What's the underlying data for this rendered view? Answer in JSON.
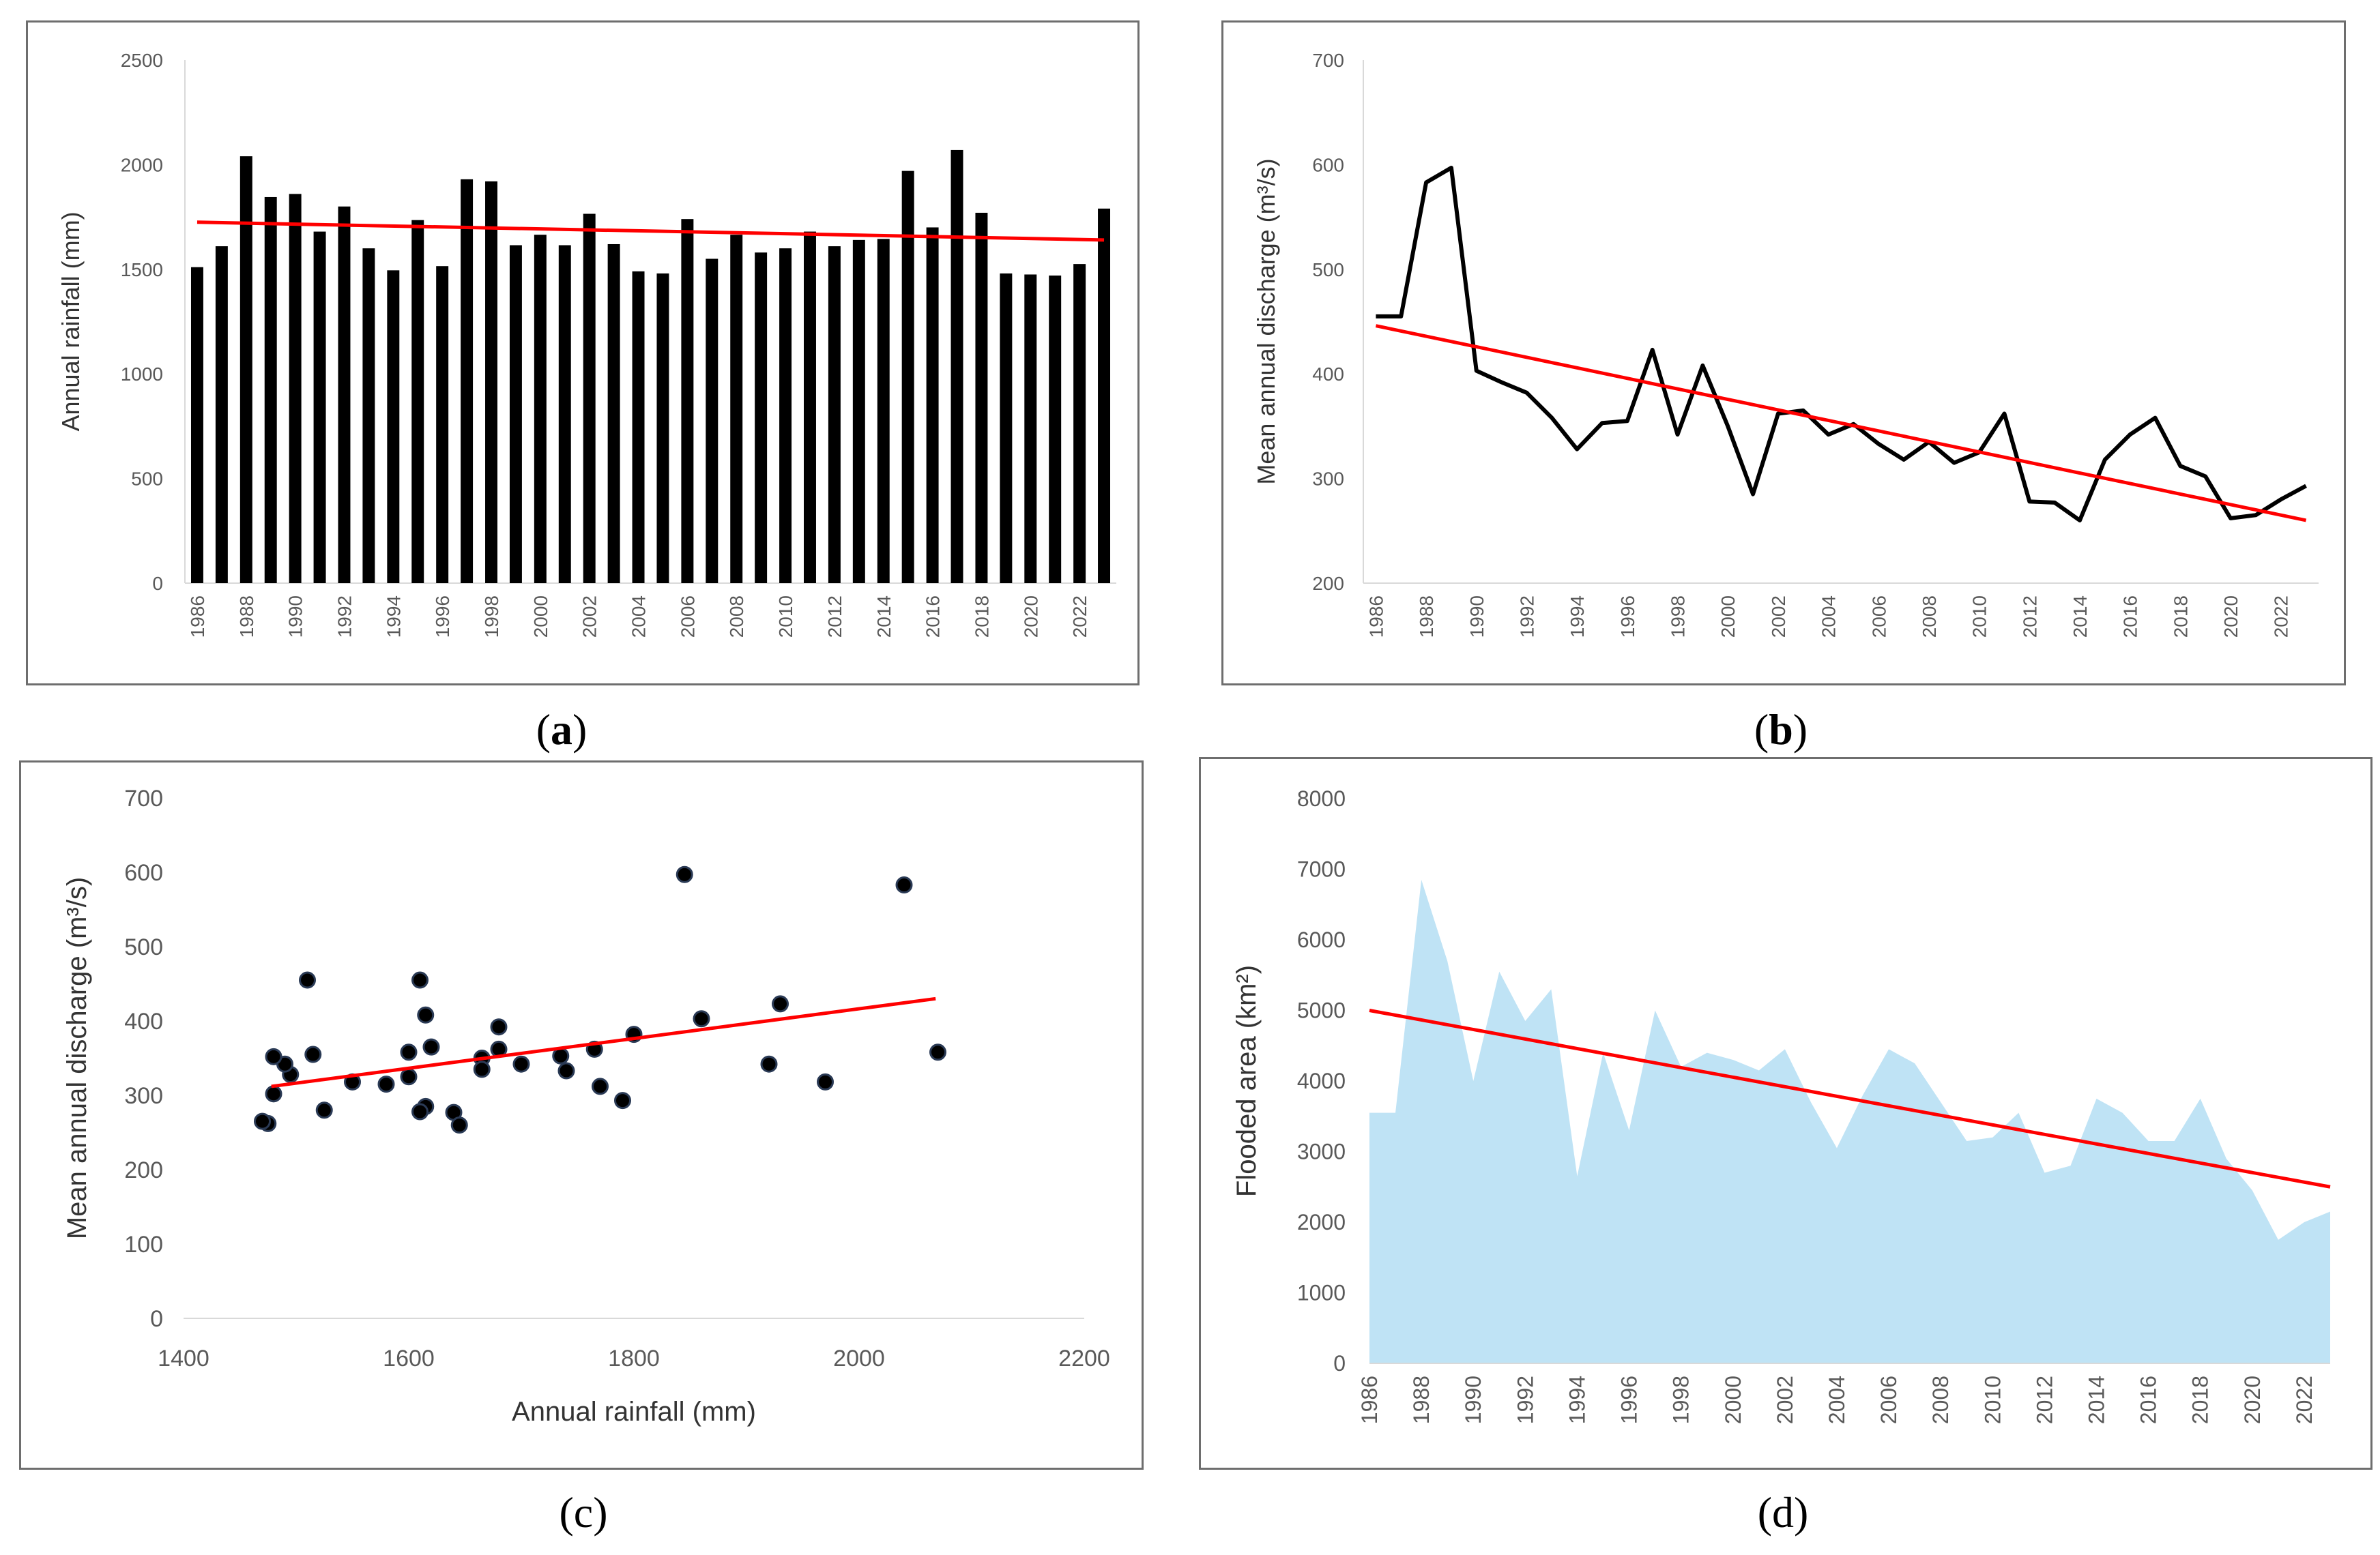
{
  "panels": [
    {
      "id": "a",
      "caption_open": "(",
      "caption_letter": "a",
      "caption_close": ")",
      "caption_bold": true
    },
    {
      "id": "b",
      "caption_open": "(",
      "caption_letter": "b",
      "caption_close": ")",
      "caption_bold": true
    },
    {
      "id": "c",
      "caption_open": "(",
      "caption_letter": "c",
      "caption_close": ")",
      "caption_bold": false
    },
    {
      "id": "d",
      "caption_open": "(",
      "caption_letter": "d",
      "caption_close": ")",
      "caption_bold": false
    }
  ],
  "colors": {
    "bar": "#000000",
    "trend": "#ff0000",
    "line": "#000000",
    "area": "#bfe3f5",
    "point": "#000000",
    "axis": "#d9d9d9",
    "tick": "#595959"
  },
  "chart_data": [
    {
      "type": "bar",
      "ylabel": "Annual rainfall (mm)",
      "xlabel": "",
      "ylim": [
        0,
        2500
      ],
      "yticks": [
        0,
        500,
        1000,
        1500,
        2000,
        2500
      ],
      "x": [
        1986,
        1987,
        1988,
        1989,
        1990,
        1991,
        1992,
        1993,
        1994,
        1995,
        1996,
        1997,
        1998,
        1999,
        2000,
        2001,
        2002,
        2003,
        2004,
        2005,
        2006,
        2007,
        2008,
        2009,
        2010,
        2011,
        2012,
        2013,
        2014,
        2015,
        2016,
        2017,
        2018,
        2019,
        2020,
        2021,
        2022,
        2023
      ],
      "xticklabels": [
        "1986",
        "1988",
        "1990",
        "1992",
        "1994",
        "1996",
        "1998",
        "2000",
        "2002",
        "2004",
        "2006",
        "2008",
        "2010",
        "2012",
        "2014",
        "2016",
        "2018",
        "2020",
        "2022"
      ],
      "values": [
        1510,
        1610,
        2040,
        1845,
        1860,
        1680,
        1800,
        1600,
        1495,
        1735,
        1515,
        1930,
        1920,
        1615,
        1665,
        1615,
        1765,
        1620,
        1490,
        1480,
        1740,
        1550,
        1665,
        1580,
        1600,
        1680,
        1610,
        1640,
        1645,
        1970,
        1700,
        2070,
        1770,
        1480,
        1475,
        1470,
        1525,
        1790
      ],
      "trend": {
        "start": [
          1986,
          1725
        ],
        "end": [
          2023,
          1640
        ]
      },
      "grid": false
    },
    {
      "type": "line",
      "ylabel": "Mean annual discharge (m³/s)",
      "xlabel": "",
      "ylim": [
        200,
        700
      ],
      "yticks": [
        200,
        300,
        400,
        500,
        600,
        700
      ],
      "x": [
        1986,
        1987,
        1988,
        1989,
        1990,
        1991,
        1992,
        1993,
        1994,
        1995,
        1996,
        1997,
        1998,
        1999,
        2000,
        2001,
        2002,
        2003,
        2004,
        2005,
        2006,
        2007,
        2008,
        2009,
        2010,
        2011,
        2012,
        2013,
        2014,
        2015,
        2016,
        2017,
        2018,
        2019,
        2020,
        2021,
        2022,
        2023
      ],
      "xticklabels": [
        "1986",
        "1988",
        "1990",
        "1992",
        "1994",
        "1996",
        "1998",
        "2000",
        "2002",
        "2004",
        "2006",
        "2008",
        "2010",
        "2012",
        "2014",
        "2016",
        "2018",
        "2020",
        "2022"
      ],
      "values": [
        455,
        455,
        583,
        597,
        403,
        392,
        382,
        358,
        328,
        353,
        355,
        423,
        342,
        408,
        350,
        285,
        362,
        365,
        342,
        352,
        333,
        318,
        335,
        315,
        325,
        362,
        278,
        277,
        260,
        318,
        342,
        358,
        312,
        302,
        262,
        265,
        280,
        293
      ],
      "trend": {
        "start": [
          1986,
          446
        ],
        "end": [
          2023,
          260
        ]
      },
      "grid": false
    },
    {
      "type": "scatter",
      "xlabel": "Annual rainfall (mm)",
      "ylabel": "Mean annual discharge (m³/s)",
      "xlim": [
        1400,
        2200
      ],
      "ylim": [
        0,
        700
      ],
      "xticks": [
        1400,
        1600,
        1800,
        2000,
        2200
      ],
      "yticks": [
        0,
        100,
        200,
        300,
        400,
        500,
        600,
        700
      ],
      "points": [
        [
          1510,
          455
        ],
        [
          1610,
          455
        ],
        [
          2040,
          583
        ],
        [
          1845,
          597
        ],
        [
          1860,
          403
        ],
        [
          1680,
          392
        ],
        [
          1800,
          382
        ],
        [
          1600,
          358
        ],
        [
          1495,
          328
        ],
        [
          1735,
          353
        ],
        [
          1515,
          355
        ],
        [
          1930,
          423
        ],
        [
          1920,
          342
        ],
        [
          1615,
          408
        ],
        [
          1665,
          350
        ],
        [
          1615,
          285
        ],
        [
          1765,
          362
        ],
        [
          1620,
          365
        ],
        [
          1490,
          342
        ],
        [
          1480,
          352
        ],
        [
          1740,
          333
        ],
        [
          1550,
          318
        ],
        [
          1665,
          335
        ],
        [
          1580,
          315
        ],
        [
          1600,
          325
        ],
        [
          1680,
          362
        ],
        [
          1610,
          278
        ],
        [
          1640,
          277
        ],
        [
          1645,
          260
        ],
        [
          1970,
          318
        ],
        [
          1700,
          342
        ],
        [
          2070,
          358
        ],
        [
          1770,
          312
        ],
        [
          1480,
          302
        ],
        [
          1475,
          262
        ],
        [
          1470,
          265
        ],
        [
          1525,
          280
        ],
        [
          1790,
          293
        ]
      ],
      "trend": {
        "start": [
          1478,
          312
        ],
        "end": [
          2068,
          430
        ]
      },
      "grid": false
    },
    {
      "type": "area",
      "ylabel": "Flooded area (km²)",
      "xlabel": "",
      "ylim": [
        0,
        8000
      ],
      "yticks": [
        0,
        1000,
        2000,
        3000,
        4000,
        5000,
        6000,
        7000,
        8000
      ],
      "x": [
        1986,
        1987,
        1988,
        1989,
        1990,
        1991,
        1992,
        1993,
        1994,
        1995,
        1996,
        1997,
        1998,
        1999,
        2000,
        2001,
        2002,
        2003,
        2004,
        2005,
        2006,
        2007,
        2008,
        2009,
        2010,
        2011,
        2012,
        2013,
        2014,
        2015,
        2016,
        2017,
        2018,
        2019,
        2020,
        2021,
        2022,
        2023
      ],
      "xticklabels": [
        "1986",
        "1988",
        "1990",
        "1992",
        "1994",
        "1996",
        "1998",
        "2000",
        "2002",
        "2004",
        "2006",
        "2008",
        "2010",
        "2012",
        "2014",
        "2016",
        "2018",
        "2020",
        "2022"
      ],
      "values": [
        3550,
        3550,
        6850,
        5700,
        4000,
        5550,
        4850,
        5300,
        2650,
        4400,
        3300,
        5000,
        4200,
        4400,
        4300,
        4150,
        4450,
        3700,
        3050,
        3800,
        4450,
        4250,
        3700,
        3150,
        3200,
        3550,
        2700,
        2800,
        3750,
        3550,
        3150,
        3150,
        3750,
        2900,
        2450,
        1750,
        2000,
        2150
      ],
      "trend": {
        "start": [
          1986,
          5000
        ],
        "end": [
          2023,
          2500
        ]
      },
      "grid": false
    }
  ]
}
